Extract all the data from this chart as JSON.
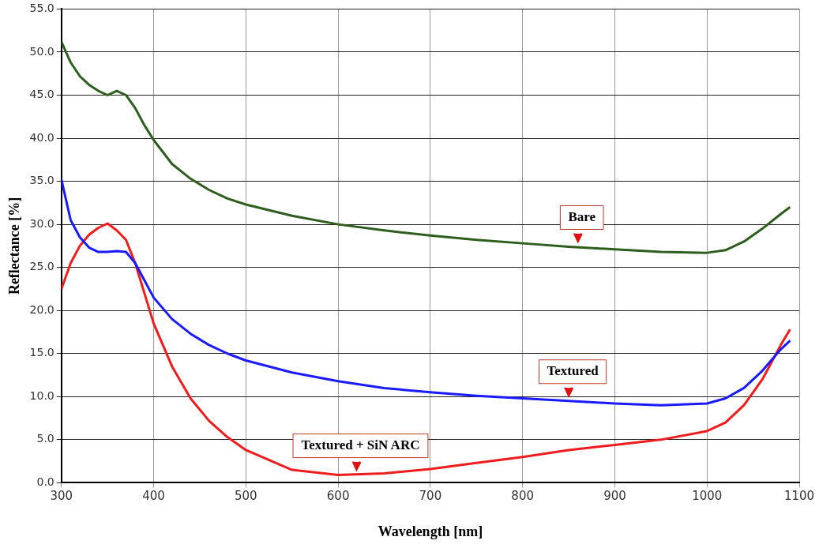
{
  "chart_data": {
    "type": "line",
    "xlabel": "Wavelength [nm]",
    "ylabel": "Reflectance [%]",
    "xlim": [
      300,
      1100
    ],
    "ylim": [
      0,
      55
    ],
    "xticks": [
      300,
      400,
      500,
      600,
      700,
      800,
      900,
      1000,
      1100
    ],
    "yticks": [
      {
        "value": 0,
        "label": "0.0"
      },
      {
        "value": 5,
        "label": "5.0"
      },
      {
        "value": 10,
        "label": "10.0"
      },
      {
        "value": 15,
        "label": "15.0"
      },
      {
        "value": 20,
        "label": "20.0"
      },
      {
        "value": 25,
        "label": "25.0"
      },
      {
        "value": 30,
        "label": "30.0"
      },
      {
        "value": 35,
        "label": "35.0"
      },
      {
        "value": 40,
        "label": "40.0"
      },
      {
        "value": 45,
        "label": "45.0"
      },
      {
        "value": 50,
        "label": "50.0"
      },
      {
        "value": 55,
        "label": "55.0"
      }
    ],
    "grid": true,
    "legend": false,
    "x": [
      300,
      310,
      320,
      330,
      340,
      350,
      360,
      370,
      380,
      390,
      400,
      420,
      440,
      460,
      480,
      500,
      550,
      600,
      650,
      700,
      750,
      800,
      850,
      900,
      950,
      1000,
      1020,
      1040,
      1060,
      1080,
      1090
    ],
    "series": [
      {
        "color": "#2e5e1e",
        "values": [
          51.2,
          48.8,
          47.2,
          46.2,
          45.5,
          45.0,
          45.5,
          45.0,
          43.5,
          41.5,
          39.8,
          37.0,
          35.3,
          34.0,
          33.0,
          32.3,
          31.0,
          30.0,
          29.3,
          28.7,
          28.2,
          27.8,
          27.4,
          27.1,
          26.8,
          26.7,
          27.0,
          28.0,
          29.5,
          31.2,
          32.0
        ]
      },
      {
        "color": "#1a1aff",
        "values": [
          35.2,
          30.5,
          28.5,
          27.3,
          26.8,
          26.8,
          26.9,
          26.8,
          25.5,
          23.5,
          21.5,
          19.0,
          17.3,
          16.0,
          15.0,
          14.2,
          12.8,
          11.8,
          11.0,
          10.5,
          10.1,
          9.8,
          9.5,
          9.2,
          9.0,
          9.2,
          9.8,
          11.0,
          13.0,
          15.5,
          16.5
        ]
      },
      {
        "color": "#ee1c1c",
        "values": [
          22.5,
          25.5,
          27.5,
          28.8,
          29.6,
          30.1,
          29.3,
          28.2,
          25.5,
          22.0,
          18.5,
          13.5,
          9.8,
          7.2,
          5.3,
          3.8,
          1.5,
          0.9,
          1.1,
          1.6,
          2.3,
          3.0,
          3.8,
          4.4,
          5.0,
          6.0,
          7.0,
          9.0,
          12.0,
          16.0,
          17.8
        ]
      }
    ],
    "annotations": [
      {
        "text": "Bare",
        "x": 860,
        "y": 27.4
      },
      {
        "text": "Textured",
        "x": 850,
        "y": 9.5
      },
      {
        "text": "Textured + SiN ARC",
        "x": 620,
        "y": 0.9
      }
    ]
  }
}
